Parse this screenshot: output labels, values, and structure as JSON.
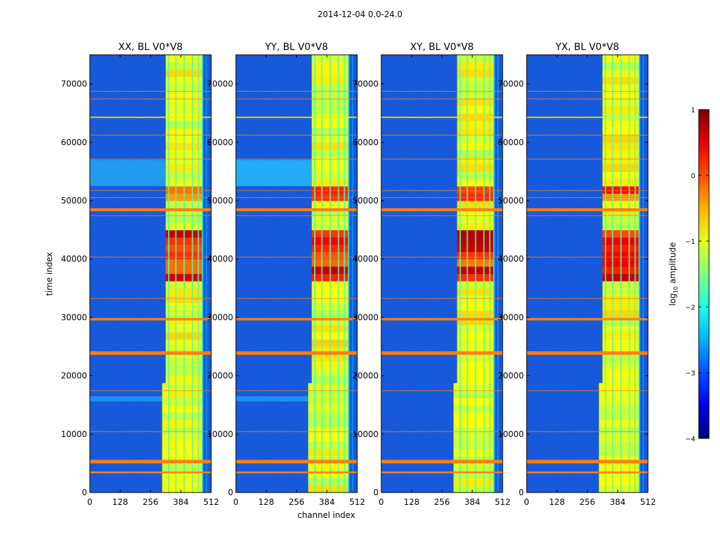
{
  "suptitle": "2014-12-04 0.0-24.0",
  "chart_data": {
    "type": "heatmap",
    "panels": [
      {
        "title": "XX, BL V0*V8",
        "polarization": "XX"
      },
      {
        "title": "YY, BL V0*V8",
        "polarization": "YY"
      },
      {
        "title": "XY, BL V0*V8",
        "polarization": "XY"
      },
      {
        "title": "YX, BL V0*V8",
        "polarization": "YX"
      }
    ],
    "xlabel": "channel index",
    "ylabel": "time index",
    "xlim": [
      0,
      512
    ],
    "ylim": [
      0,
      75000
    ],
    "xticks": [
      0,
      128,
      256,
      384,
      512
    ],
    "yticks": [
      0,
      10000,
      20000,
      30000,
      40000,
      50000,
      60000,
      70000
    ],
    "ytick_labels": [
      "0",
      "10000",
      "20000",
      "30000",
      "40000",
      "50000",
      "60000",
      "70000"
    ],
    "colorbar": {
      "label": "log10 amplitude",
      "label_main": "log",
      "label_sub": "10",
      "label_rest": " amplitude",
      "range": [
        -4,
        1
      ],
      "ticks": [
        1,
        0,
        -1,
        -2,
        -3,
        -4
      ],
      "tick_labels": [
        "1",
        "0",
        "−1",
        "−2",
        "−3",
        "−4"
      ],
      "colormap": "jet"
    },
    "rfi_channel_band": [
      320,
      475
    ],
    "flagged_time_bands": [
      [
        5000,
        5600
      ],
      [
        3300,
        3600
      ],
      [
        23600,
        24200
      ],
      [
        29500,
        29900
      ],
      [
        48200,
        48700
      ]
    ]
  },
  "colors": {
    "background": "#ffffff",
    "axis": "#000000",
    "low": "#1a4fd8",
    "flag": "#ff7f0e"
  }
}
